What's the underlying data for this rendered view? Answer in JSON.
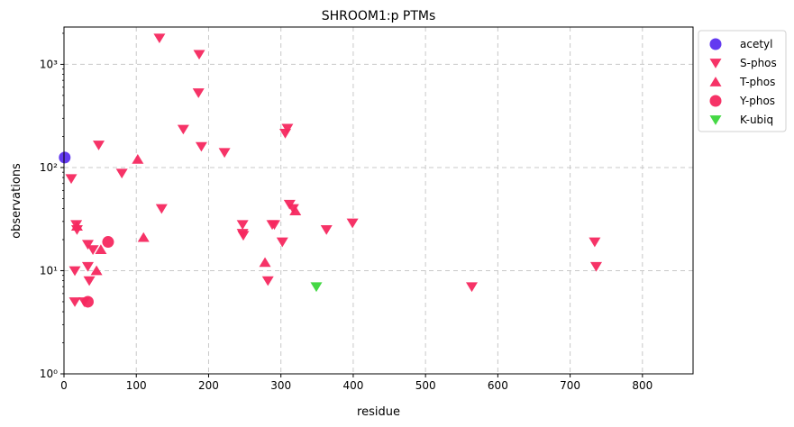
{
  "chart_data": {
    "type": "scatter",
    "title": "SHROOM1:p PTMs",
    "xlabel": "residue",
    "ylabel": "observations",
    "xlim": [
      0,
      870
    ],
    "ylim": [
      1,
      2300
    ],
    "yscale": "log",
    "x_ticks": [
      0,
      100,
      200,
      300,
      400,
      500,
      600,
      700,
      800
    ],
    "y_ticks": [
      {
        "value": 1,
        "label": "10⁰"
      },
      {
        "value": 10,
        "label": "10¹"
      },
      {
        "value": 100,
        "label": "10²"
      },
      {
        "value": 1000,
        "label": "10³"
      }
    ],
    "grid": true,
    "legend_position": "outside-top-right",
    "series": [
      {
        "name": "acetyl",
        "marker": "circle",
        "color": "#5b2fef",
        "points": [
          [
            1,
            125
          ]
        ]
      },
      {
        "name": "S-phos",
        "marker": "triangle-down",
        "color": "#f5285f",
        "points": [
          [
            10,
            78
          ],
          [
            15,
            5
          ],
          [
            17,
            28
          ],
          [
            18,
            25
          ],
          [
            15,
            10
          ],
          [
            28,
            5
          ],
          [
            33,
            18
          ],
          [
            33,
            11
          ],
          [
            35,
            8
          ],
          [
            40,
            16
          ],
          [
            48,
            165
          ],
          [
            80,
            88
          ],
          [
            132,
            1800
          ],
          [
            135,
            40
          ],
          [
            165,
            235
          ],
          [
            187,
            1250
          ],
          [
            186,
            530
          ],
          [
            190,
            160
          ],
          [
            222,
            140
          ],
          [
            247,
            28
          ],
          [
            247,
            23
          ],
          [
            248,
            22
          ],
          [
            282,
            8
          ],
          [
            288,
            28
          ],
          [
            291,
            28
          ],
          [
            302,
            19
          ],
          [
            306,
            215
          ],
          [
            309,
            240
          ],
          [
            312,
            44
          ],
          [
            317,
            40
          ],
          [
            363,
            25
          ],
          [
            399,
            29
          ],
          [
            564,
            7
          ],
          [
            734,
            19
          ],
          [
            736,
            11
          ]
        ]
      },
      {
        "name": "T-phos",
        "marker": "triangle-up",
        "color": "#f5285f",
        "points": [
          [
            18,
            27
          ],
          [
            45,
            10
          ],
          [
            51,
            16
          ],
          [
            102,
            120
          ],
          [
            110,
            21
          ],
          [
            278,
            12
          ],
          [
            320,
            38
          ]
        ]
      },
      {
        "name": "Y-phos",
        "marker": "circle",
        "color": "#f5285f",
        "points": [
          [
            33,
            5
          ],
          [
            61,
            19
          ]
        ]
      },
      {
        "name": "K-ubiq",
        "marker": "triangle-down",
        "color": "#3bd63b",
        "points": [
          [
            349,
            7
          ]
        ]
      }
    ]
  }
}
